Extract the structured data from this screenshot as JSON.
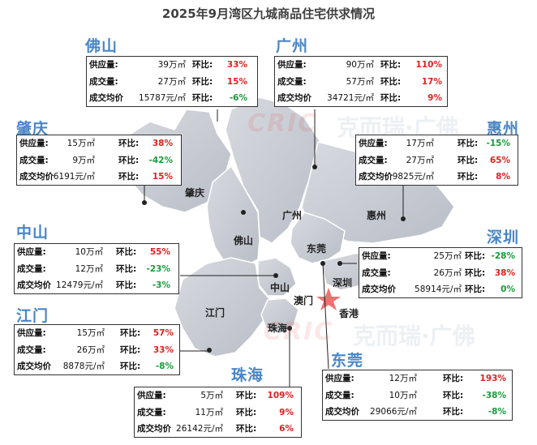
{
  "title": "2025年9月湾区九城商品住宅供求情况",
  "watermark": {
    "brand": "CRIC",
    "text": "克而瑞·广佛"
  },
  "labels": {
    "supply": "供应量:",
    "deal": "成交量:",
    "price": "成交均价",
    "hb": "环比:"
  },
  "colors": {
    "title_blue": "#4a86c5",
    "up": "#e02020",
    "down": "#1a9a3a",
    "land": "#c9ccd3"
  },
  "map_labels": [
    "肇庆",
    "广州",
    "惠州",
    "佛山",
    "东莞",
    "深圳",
    "中山",
    "澳门",
    "江门",
    "珠海",
    "香港"
  ],
  "cities": {
    "foshan": {
      "name": "佛山",
      "supply": "39万㎡",
      "supply_chg": "33%",
      "deal": "27万㎡",
      "deal_chg": "15%",
      "price": "15787元/㎡",
      "price_chg": "-6%"
    },
    "guangzhou": {
      "name": "广州",
      "supply": "90万㎡",
      "supply_chg": "110%",
      "deal": "57万㎡",
      "deal_chg": "17%",
      "price": "34721元/㎡",
      "price_chg": "9%"
    },
    "zhaoqing": {
      "name": "肇庆",
      "supply": "15万㎡",
      "supply_chg": "38%",
      "deal": "9万㎡",
      "deal_chg": "-42%",
      "price": "6191元/㎡",
      "price_chg": "15%"
    },
    "huizhou": {
      "name": "惠州",
      "supply": "17万㎡",
      "supply_chg": "-15%",
      "deal": "27万㎡",
      "deal_chg": "65%",
      "price": "9825元/㎡",
      "price_chg": "8%"
    },
    "zhongshan": {
      "name": "中山",
      "supply": "10万㎡",
      "supply_chg": "55%",
      "deal": "12万㎡",
      "deal_chg": "-23%",
      "price": "12479元/㎡",
      "price_chg": "-3%"
    },
    "shenzhen": {
      "name": "深圳",
      "supply": "25万㎡",
      "supply_chg": "-28%",
      "deal": "26万㎡",
      "deal_chg": "38%",
      "price": "58914元/㎡",
      "price_chg": "0%"
    },
    "jiangmen": {
      "name": "江门",
      "supply": "15万㎡",
      "supply_chg": "57%",
      "deal": "26万㎡",
      "deal_chg": "33%",
      "price": "8878元/㎡",
      "price_chg": "-8%"
    },
    "zhuhai": {
      "name": "珠海",
      "supply": "5万㎡",
      "supply_chg": "109%",
      "deal": "11万㎡",
      "deal_chg": "9%",
      "price": "26142元/㎡",
      "price_chg": "6%"
    },
    "dongguan": {
      "name": "东莞",
      "supply": "12万㎡",
      "supply_chg": "193%",
      "deal": "10万㎡",
      "deal_chg": "-38%",
      "price": "29066元/㎡",
      "price_chg": "-8%"
    }
  }
}
